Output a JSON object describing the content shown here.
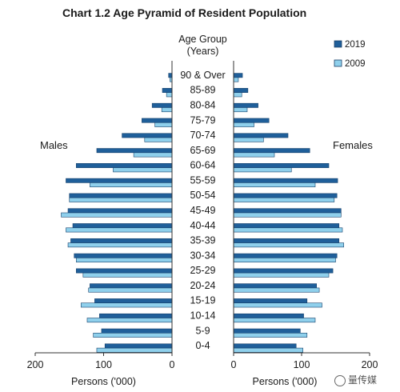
{
  "chart_data": {
    "type": "bar",
    "title": "Chart 1.2  Age Pyramid of Resident Population",
    "center_label": [
      "Age Group",
      "(Years)"
    ],
    "left_label": "Males",
    "right_label": "Females",
    "xlabel_left": "Persons ('000)",
    "xlabel_right": "Persons ('000)",
    "x_ticks_left": [
      "200",
      "100",
      "0"
    ],
    "x_ticks_right": [
      "0",
      "100",
      "200"
    ],
    "xlim": [
      0,
      200
    ],
    "legend_position": "top-right",
    "categories": [
      "0-4",
      "5-9",
      "10-14",
      "15-19",
      "20-24",
      "25-29",
      "30-34",
      "35-39",
      "40-44",
      "45-49",
      "50-54",
      "55-59",
      "60-64",
      "65-69",
      "70-74",
      "75-79",
      "80-84",
      "85-89",
      "90 & Over"
    ],
    "series": [
      {
        "name": "2019",
        "color": "#1f5f9a",
        "males": [
          98,
          103,
          106,
          113,
          120,
          140,
          143,
          148,
          145,
          152,
          150,
          155,
          140,
          110,
          73,
          44,
          29,
          14,
          5
        ],
        "females": [
          92,
          98,
          103,
          108,
          122,
          146,
          152,
          155,
          155,
          158,
          152,
          153,
          140,
          112,
          80,
          52,
          36,
          21,
          13
        ]
      },
      {
        "name": "2009",
        "color": "#8fd0ec",
        "males": [
          110,
          115,
          124,
          133,
          122,
          130,
          140,
          152,
          155,
          162,
          150,
          120,
          86,
          56,
          40,
          25,
          15,
          8,
          3
        ],
        "females": [
          102,
          108,
          120,
          130,
          126,
          140,
          150,
          162,
          160,
          158,
          148,
          120,
          85,
          60,
          44,
          30,
          20,
          12,
          7
        ]
      }
    ]
  },
  "watermark": "量传媒"
}
